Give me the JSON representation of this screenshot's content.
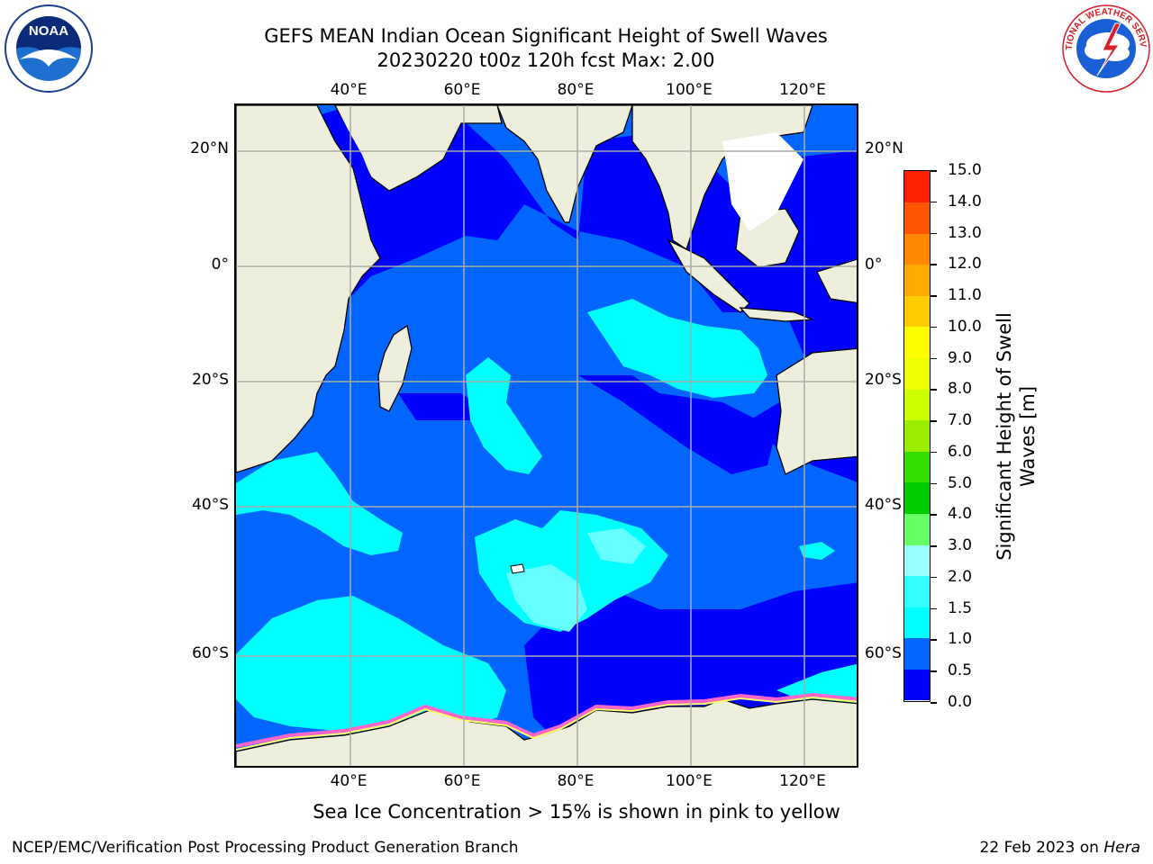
{
  "title": {
    "line1": "GEFS MEAN Indian Ocean Significant Height of Swell Waves",
    "line2": "20230220 t00z 120h fcst   Max: 2.00"
  },
  "logos": {
    "left_text": "NOAA",
    "left_ring": "NATIONAL OCEANIC AND ATMOSPHERIC ADMINISTRATION · U.S. DEPARTMENT OF COMMERCE",
    "right_ring": "NATIONAL WEATHER SERVICE"
  },
  "axes": {
    "lon_ticks": [
      "40°E",
      "60°E",
      "80°E",
      "100°E",
      "120°E"
    ],
    "lat_ticks_left": [
      "20°N",
      "0°",
      "20°S",
      "40°S",
      "60°S"
    ],
    "lat_ticks_right": [
      "20°N",
      "0°",
      "20°S",
      "40°S",
      "60°S"
    ]
  },
  "colorbar": {
    "title_line1": "Significant Height of Swell",
    "title_line2": "Waves [m]",
    "ticks": [
      "15.0",
      "14.0",
      "13.0",
      "12.0",
      "11.0",
      "10.0",
      "9.0",
      "8.0",
      "7.0",
      "6.0",
      "5.0",
      "4.0",
      "3.0",
      "2.0",
      "1.5",
      "1.0",
      "0.5",
      "0.0"
    ],
    "colors": [
      "#0000ff",
      "#0066ff",
      "#00ffff",
      "#33ffff",
      "#99ffff",
      "#66ff66",
      "#00cc00",
      "#33dd00",
      "#99ee00",
      "#ccff00",
      "#eeff00",
      "#ffff00",
      "#ffcc00",
      "#ffaa00",
      "#ff8800",
      "#ff5500",
      "#ff2200"
    ]
  },
  "map": {
    "land_color": "#eeeedc",
    "ocean_deep": "#0000ff",
    "ocean_mid": "#0066ff",
    "ocean_light": "#00ffff",
    "ocean_lightest": "#66ffff"
  },
  "footer": {
    "note": "Sea Ice Concentration > 15% is shown in pink to yellow",
    "left_credit": "NCEP/EMC/Verification Post Processing Product Generation Branch",
    "right_credit_date": "22 Feb 2023 on ",
    "right_credit_machine": "Hera"
  }
}
